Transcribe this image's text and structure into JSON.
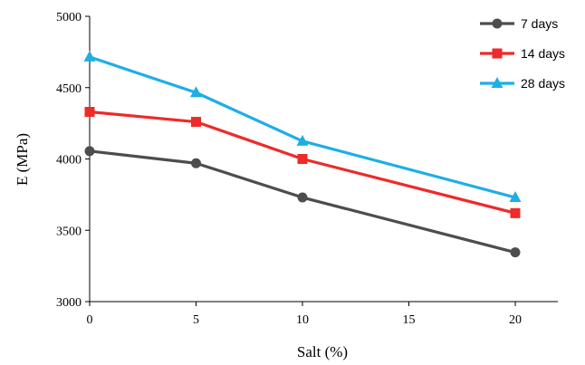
{
  "chart_data": {
    "type": "line",
    "title": "",
    "xlabel": "Salt (%)",
    "ylabel": "E (MPa)",
    "x": [
      0,
      5,
      10,
      20
    ],
    "xlim": [
      0,
      22
    ],
    "ylim": [
      3000,
      5000
    ],
    "xticks": [
      "0",
      "5",
      "10",
      "15",
      "20"
    ],
    "yticks": [
      "3000",
      "3500",
      "4000",
      "4500",
      "5000"
    ],
    "grid": false,
    "legend_position": "top-right",
    "series": [
      {
        "name": "7 days",
        "values": [
          4055,
          3970,
          3730,
          3345
        ],
        "color": "#4d4d4d",
        "marker": "circle"
      },
      {
        "name": "14 days",
        "values": [
          4330,
          4260,
          4000,
          3620
        ],
        "color": "#ee2a2a",
        "marker": "square"
      },
      {
        "name": "28 days",
        "values": [
          4715,
          4465,
          4125,
          3730
        ],
        "color": "#1eaee6",
        "marker": "triangle"
      }
    ]
  }
}
